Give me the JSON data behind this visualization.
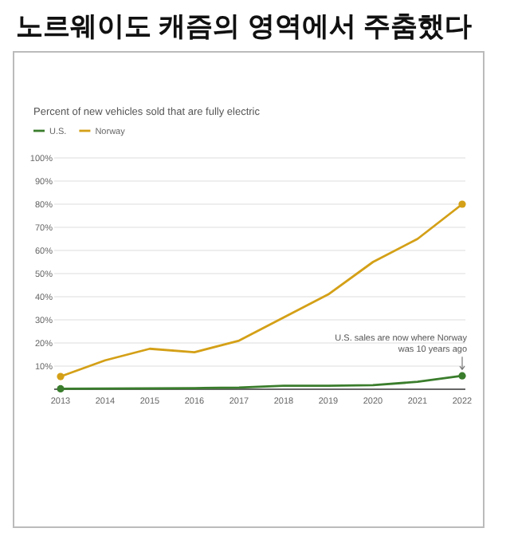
{
  "chart_data": {
    "type": "line",
    "title": "노르웨이도 캐즘의 영역에서 주춤했다",
    "subtitle": "Percent of new vehicles sold that are fully electric",
    "categories": [
      "2013",
      "2014",
      "2015",
      "2016",
      "2017",
      "2018",
      "2019",
      "2020",
      "2021",
      "2022"
    ],
    "series": [
      {
        "name": "U.S.",
        "color": "#3a7d2c",
        "values": [
          0.2,
          0.3,
          0.4,
          0.5,
          0.7,
          1.5,
          1.5,
          1.8,
          3.2,
          5.8
        ]
      },
      {
        "name": "Norway",
        "color": "#d4a017",
        "values": [
          5.5,
          12.5,
          17.5,
          16,
          21,
          31,
          41,
          55,
          65,
          80
        ]
      }
    ],
    "ylim": [
      0,
      100
    ],
    "yticks": [
      {
        "value": 10,
        "label": "10%"
      },
      {
        "value": 20,
        "label": "20%"
      },
      {
        "value": 30,
        "label": "30%"
      },
      {
        "value": 40,
        "label": "40%"
      },
      {
        "value": 50,
        "label": "50%"
      },
      {
        "value": 60,
        "label": "60%"
      },
      {
        "value": 70,
        "label": "70%"
      },
      {
        "value": 80,
        "label": "80%"
      },
      {
        "value": 90,
        "label": "90%"
      },
      {
        "value": 100,
        "label": "100%"
      }
    ],
    "grid": "y",
    "legend": "top left",
    "line_style": "solid",
    "annotations": [
      {
        "text": "U.S. sales are now where Norway was 10 years ago",
        "x": "2022",
        "y": 5.8
      }
    ]
  }
}
